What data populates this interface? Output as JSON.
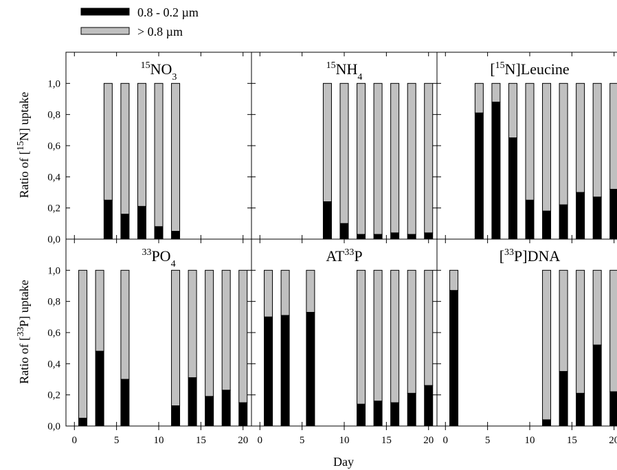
{
  "legend": {
    "items": [
      {
        "label": "0.8 - 0.2 µm",
        "color": "#000000"
      },
      {
        "label": "> 0.8 µm",
        "color": "#c0c0c0"
      }
    ]
  },
  "axes": {
    "xlabel": "Day",
    "ylabel_top": {
      "pre": "Ratio of [",
      "sup": "15",
      "post": "N] uptake"
    },
    "ylabel_bottom": {
      "pre": "Ratio of [",
      "sup": "33",
      "post": "P] uptake"
    }
  },
  "chart_data": {
    "type": "bar",
    "stacked": true,
    "xlim": [
      -1,
      21
    ],
    "ylim": [
      0,
      1.2
    ],
    "xticks": [
      0,
      5,
      10,
      15,
      20
    ],
    "xtick_labels": [
      "0",
      "5",
      "10",
      "15",
      "20"
    ],
    "yticks": [
      0,
      0.2,
      0.4,
      0.6,
      0.8,
      1.0
    ],
    "ytick_labels": [
      "0,0",
      "0,2",
      "0,4",
      "0,6",
      "0,8",
      "1,0"
    ],
    "total": 1.0,
    "series_names": [
      "0.8 - 0.2 µm",
      "> 0.8 µm"
    ],
    "series_colors": [
      "#000000",
      "#c0c0c0"
    ],
    "panels": [
      {
        "title": {
          "pre": "",
          "sup": "15",
          "main": "NO",
          "sub": "3",
          "post": ""
        },
        "row": 0,
        "col": 0,
        "x": [
          4,
          6,
          8,
          10,
          12
        ],
        "small_fraction": [
          0.25,
          0.16,
          0.21,
          0.08,
          0.05
        ]
      },
      {
        "title": {
          "pre": "",
          "sup": "15",
          "main": "NH",
          "sub": "4",
          "post": ""
        },
        "row": 0,
        "col": 1,
        "x": [
          8,
          10,
          12,
          14,
          16,
          18,
          20
        ],
        "small_fraction": [
          0.24,
          0.1,
          0.03,
          0.03,
          0.04,
          0.03,
          0.04
        ]
      },
      {
        "title": {
          "pre": "[",
          "sup": "15",
          "main": "N]Leucine",
          "sub": "",
          "post": ""
        },
        "row": 0,
        "col": 2,
        "x": [
          4,
          6,
          8,
          10,
          12,
          14,
          16,
          18,
          20
        ],
        "small_fraction": [
          0.81,
          0.88,
          0.65,
          0.25,
          0.18,
          0.22,
          0.3,
          0.27,
          0.32
        ]
      },
      {
        "title": {
          "pre": "",
          "sup": "33",
          "main": "PO",
          "sub": "4",
          "post": ""
        },
        "row": 1,
        "col": 0,
        "x": [
          1,
          3,
          6,
          12,
          14,
          16,
          18,
          20
        ],
        "small_fraction": [
          0.05,
          0.48,
          0.3,
          0.13,
          0.31,
          0.19,
          0.23,
          0.15
        ]
      },
      {
        "title": {
          "pre": "AT",
          "sup": "33",
          "main": "P",
          "sub": "",
          "post": ""
        },
        "row": 1,
        "col": 1,
        "x": [
          1,
          3,
          6,
          12,
          14,
          16,
          18,
          20
        ],
        "small_fraction": [
          0.7,
          0.71,
          0.73,
          0.14,
          0.16,
          0.15,
          0.21,
          0.26
        ]
      },
      {
        "title": {
          "pre": "[",
          "sup": "33",
          "main": "P]DNA",
          "sub": "",
          "post": ""
        },
        "row": 1,
        "col": 2,
        "x": [
          1,
          12,
          14,
          16,
          18,
          20
        ],
        "small_fraction": [
          0.87,
          0.04,
          0.35,
          0.21,
          0.52,
          0.22
        ]
      }
    ]
  }
}
